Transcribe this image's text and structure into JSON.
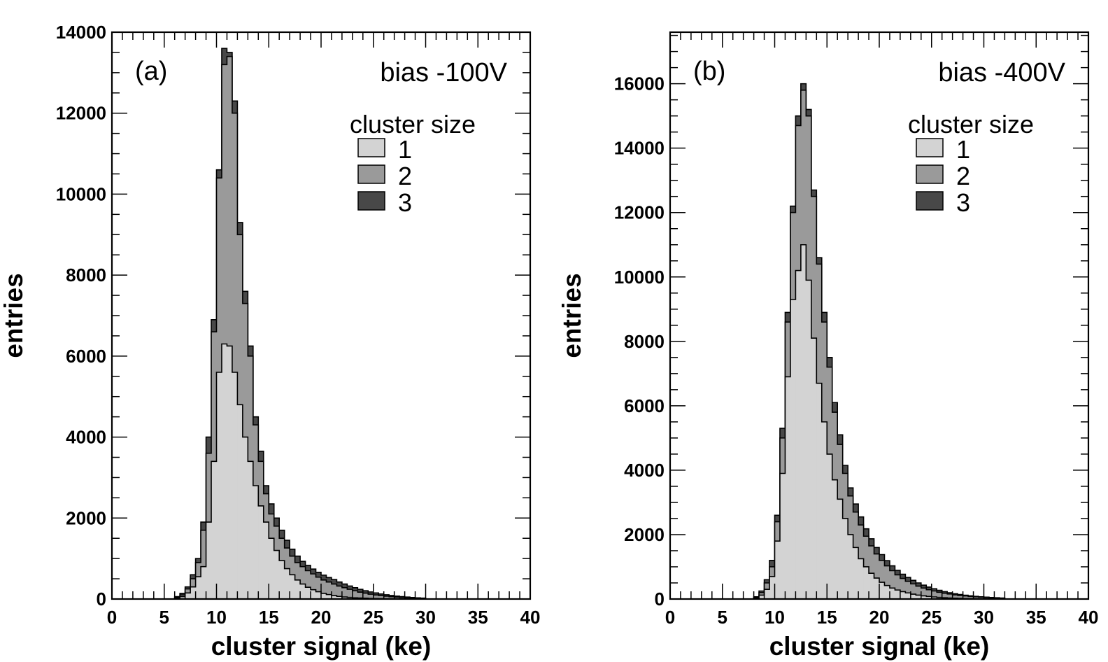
{
  "chart_data": [
    {
      "type": "histogram-stacked",
      "panel_label": "(a)",
      "annotation": "bias -100V",
      "xlabel": "cluster signal (ke)",
      "ylabel": "entries",
      "xlim": [
        0,
        40
      ],
      "ylim": [
        0,
        14000
      ],
      "xticks": [
        "0",
        "5",
        "10",
        "15",
        "20",
        "25",
        "30",
        "35",
        "40"
      ],
      "yticks": [
        "0",
        "2000",
        "4000",
        "6000",
        "8000",
        "10000",
        "12000",
        "14000"
      ],
      "ytick_values": [
        0,
        2000,
        4000,
        6000,
        8000,
        10000,
        12000,
        14000
      ],
      "bin_start": 6.0,
      "bin_width": 0.5,
      "legend": {
        "title": "cluster size",
        "position": "top-right",
        "labels": [
          "1",
          "2",
          "3"
        ]
      },
      "series": [
        {
          "name": "1",
          "color": "#d3d3d3",
          "cumulative": [
            20,
            60,
            150,
            300,
            550,
            800,
            1900,
            3400,
            5600,
            6300,
            6250,
            5600,
            4800,
            4000,
            3400,
            2800,
            2300,
            1900,
            1500,
            1200,
            950,
            750,
            600,
            470,
            370,
            290,
            230,
            180,
            140,
            110,
            85,
            65,
            50,
            40,
            30,
            25,
            20,
            15,
            12,
            10,
            8,
            6,
            5,
            4,
            3,
            2,
            2,
            1
          ]
        },
        {
          "name": "2",
          "color": "#9a9a9a",
          "cumulative": [
            40,
            100,
            250,
            500,
            900,
            1700,
            3600,
            6600,
            10400,
            13200,
            13400,
            12000,
            9000,
            7300,
            6000,
            4300,
            3400,
            2600,
            2100,
            1800,
            1500,
            1260,
            1060,
            900,
            800,
            700,
            620,
            540,
            470,
            420,
            370,
            320,
            280,
            240,
            205,
            170,
            145,
            120,
            100,
            85,
            70,
            58,
            48,
            40,
            33,
            26,
            20,
            15
          ]
        },
        {
          "name": "3",
          "color": "#484848",
          "cumulative": [
            60,
            140,
            300,
            600,
            1000,
            1900,
            4000,
            6900,
            10600,
            13600,
            13500,
            12300,
            9300,
            7600,
            6250,
            4500,
            3650,
            2800,
            2350,
            2000,
            1700,
            1450,
            1230,
            1060,
            930,
            830,
            740,
            660,
            590,
            530,
            480,
            420,
            370,
            320,
            280,
            240,
            205,
            175,
            150,
            125,
            105,
            88,
            72,
            60,
            48,
            38,
            30,
            22
          ]
        }
      ]
    },
    {
      "type": "histogram-stacked",
      "panel_label": "(b)",
      "annotation": "bias -400V",
      "xlabel": "cluster signal (ke)",
      "ylabel": "entries",
      "xlim": [
        0,
        40
      ],
      "ylim": [
        0,
        17600
      ],
      "xticks": [
        "0",
        "5",
        "10",
        "15",
        "20",
        "25",
        "30",
        "35",
        "40"
      ],
      "yticks": [
        "0",
        "2000",
        "4000",
        "6000",
        "8000",
        "10000",
        "12000",
        "14000",
        "16000"
      ],
      "ytick_values": [
        0,
        2000,
        4000,
        6000,
        8000,
        10000,
        12000,
        14000,
        16000
      ],
      "bin_start": 8.0,
      "bin_width": 0.5,
      "legend": {
        "title": "cluster size",
        "position": "top-right",
        "labels": [
          "1",
          "2",
          "3"
        ]
      },
      "series": [
        {
          "name": "1",
          "color": "#d3d3d3",
          "cumulative": [
            30,
            120,
            300,
            700,
            1800,
            3900,
            6900,
            9300,
            10200,
            11000,
            9900,
            8100,
            6700,
            5500,
            4500,
            3700,
            3100,
            2500,
            2000,
            1600,
            1250,
            1000,
            800,
            650,
            520,
            420,
            340,
            280,
            230,
            190,
            150,
            120,
            100,
            80,
            65,
            50,
            40,
            32,
            25,
            20,
            15,
            12,
            10,
            8,
            6,
            4,
            3,
            2
          ]
        },
        {
          "name": "2",
          "color": "#9a9a9a",
          "cumulative": [
            50,
            200,
            500,
            1000,
            2400,
            5000,
            8600,
            12000,
            14700,
            15800,
            15000,
            12500,
            10400,
            8600,
            7200,
            5800,
            4800,
            3900,
            3200,
            2700,
            2300,
            1950,
            1650,
            1400,
            1200,
            1030,
            880,
            750,
            640,
            550,
            470,
            400,
            340,
            290,
            250,
            210,
            180,
            155,
            130,
            110,
            95,
            80,
            68,
            58,
            48,
            40,
            33,
            26
          ]
        },
        {
          "name": "3",
          "color": "#484848",
          "cumulative": [
            70,
            250,
            600,
            1200,
            2600,
            5300,
            8900,
            12200,
            15000,
            16000,
            15200,
            12700,
            10600,
            8900,
            7500,
            6100,
            5100,
            4150,
            3450,
            2950,
            2550,
            2180,
            1870,
            1600,
            1380,
            1190,
            1030,
            890,
            770,
            670,
            580,
            500,
            430,
            370,
            320,
            270,
            230,
            195,
            165,
            140,
            118,
            100,
            84,
            70,
            58,
            48,
            39,
            31
          ]
        }
      ]
    }
  ]
}
